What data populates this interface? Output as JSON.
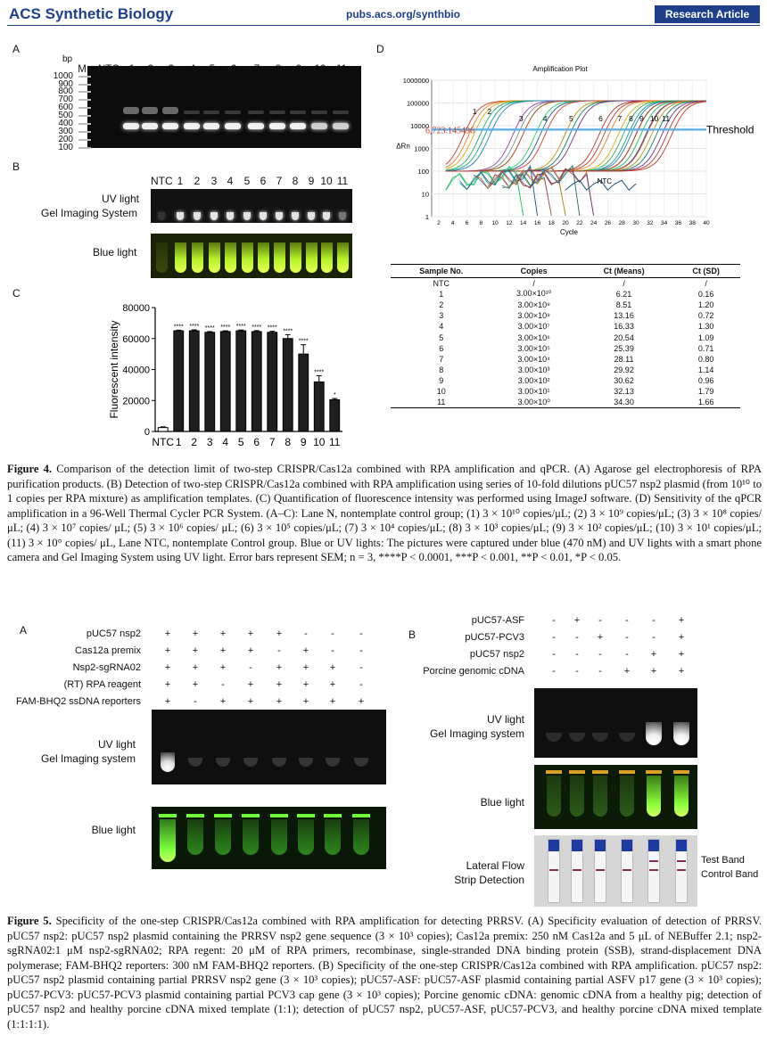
{
  "header": {
    "journal": "ACS Synthetic Biology",
    "url": "pubs.acs.org/synthbio",
    "article_type": "Research Article"
  },
  "fig4": {
    "panel_a": {
      "label": "A",
      "bp_label": "bp",
      "lane_labels": [
        "M",
        "NTC",
        "1",
        "2",
        "3",
        "4",
        "5",
        "6",
        "7",
        "8",
        "9",
        "10",
        "11"
      ],
      "bp_ticks": [
        "1000",
        "900",
        "800",
        "700",
        "600",
        "500",
        "400",
        "300",
        "200",
        "100"
      ]
    },
    "panel_b": {
      "label": "B",
      "lane_labels": [
        "NTC",
        "1",
        "2",
        "3",
        "4",
        "5",
        "6",
        "7",
        "8",
        "9",
        "10",
        "11"
      ],
      "uv_label_line1": "UV light",
      "uv_label_line2": "Gel Imaging System",
      "blue_label": "Blue light"
    },
    "panel_c": {
      "label": "C",
      "chart_data": {
        "type": "bar",
        "categories": [
          "NTC",
          "1",
          "2",
          "3",
          "4",
          "5",
          "6",
          "7",
          "8",
          "9",
          "10",
          "11"
        ],
        "values": [
          2500,
          65000,
          65000,
          64000,
          64500,
          65000,
          64500,
          64000,
          60000,
          50000,
          32000,
          20500
        ],
        "errors": [
          500,
          400,
          600,
          500,
          500,
          500,
          600,
          700,
          2500,
          6000,
          4000,
          800
        ],
        "significance": [
          "",
          "****",
          "****",
          "****",
          "****",
          "****",
          "****",
          "****",
          "****",
          "****",
          "****",
          "*"
        ],
        "ylabel": "Fluorescent intensity",
        "yticks": [
          "0",
          "20000",
          "40000",
          "60000",
          "80000"
        ],
        "ylim": [
          0,
          80000
        ]
      }
    },
    "panel_d": {
      "label": "D",
      "chart_data": {
        "type": "line",
        "title": "Amplification Plot",
        "xlabel": "Cycle",
        "ylabel": "ΔRn",
        "xticks": [
          "2",
          "4",
          "6",
          "8",
          "10",
          "12",
          "14",
          "16",
          "18",
          "20",
          "22",
          "24",
          "26",
          "28",
          "30",
          "32",
          "34",
          "36",
          "38",
          "40"
        ],
        "yticks": [
          "1000000",
          "100000",
          "10000",
          "1000",
          "100",
          "10",
          "1"
        ],
        "threshold_label": "Threshold",
        "threshold_value": "6,723.145496",
        "curve_labels": [
          "1",
          "2",
          "3",
          "4",
          "5",
          "6",
          "7",
          "8",
          "9",
          "10",
          "11"
        ],
        "ntc_label": "NTC"
      },
      "table": {
        "headers": [
          "Sample No.",
          "Copies",
          "Ct (Means)",
          "Ct (SD)"
        ],
        "rows": [
          [
            "NTC",
            "/",
            "/",
            "/"
          ],
          [
            "1",
            "3.00×10¹⁰",
            "6.21",
            "0.16"
          ],
          [
            "2",
            "3.00×10⁹",
            "8.51",
            "1.20"
          ],
          [
            "3",
            "3.00×10⁸",
            "13.16",
            "0.72"
          ],
          [
            "4",
            "3.00×10⁷",
            "16.33",
            "1.30"
          ],
          [
            "5",
            "3.00×10⁶",
            "20.54",
            "1.09"
          ],
          [
            "6",
            "3.00×10⁵",
            "25.39",
            "0.71"
          ],
          [
            "7",
            "3.00×10⁴",
            "28.11",
            "0.80"
          ],
          [
            "8",
            "3.00×10³",
            "29.92",
            "1.14"
          ],
          [
            "9",
            "3.00×10²",
            "30.62",
            "0.96"
          ],
          [
            "10",
            "3.00×10¹",
            "32.13",
            "1.79"
          ],
          [
            "11",
            "3.00×10⁰",
            "34.30",
            "1.66"
          ]
        ]
      }
    },
    "caption_lead": "Figure 4.",
    "caption": "Comparison of the detection limit of two-step CRISPR/Cas12a combined with RPA amplification and qPCR. (A) Agarose gel electrophoresis of RPA purification products. (B) Detection of two-step CRISPR/Cas12a combined with RPA amplification using series of 10-fold dilutions pUC57 nsp2 plasmid (from 10¹⁰ to 1 copies per RPA mixture) as amplification templates. (C) Quantification of fluorescence intensity was performed using ImageJ software. (D) Sensitivity of the qPCR amplification in a 96-Well Thermal Cycler PCR System. (A–C): Lane N, nontemplate control group; (1) 3 × 10¹⁰ copies/μL; (2) 3 × 10⁹ copies/μL; (3) 3 × 10⁸ copies/μL; (4) 3 × 10⁷ copies/ μL; (5) 3 × 10⁶ copies/ μL; (6) 3 × 10⁵ copies/μL; (7) 3 × 10⁴ copies/μL; (8) 3 × 10³ copies/μL; (9) 3 × 10² copies/μL; (10) 3 × 10¹ copies/μL; (11) 3 × 10° copies/ μL, Lane NTC, nontemplate Control group. Blue or UV lights: The pictures were captured under blue (470 nM) and UV lights with a smart phone camera and Gel Imaging System using UV light. Error bars represent SEM; n = 3, ****P < 0.0001, ***P < 0.001, **P < 0.01, *P < 0.05."
  },
  "fig5": {
    "panel_a": {
      "label": "A",
      "rows": [
        {
          "label": "pUC57 nsp2",
          "values": [
            "+",
            "+",
            "+",
            "+",
            "+",
            "-",
            "-",
            "-"
          ]
        },
        {
          "label": "Cas12a premix",
          "values": [
            "+",
            "+",
            "+",
            "+",
            "-",
            "+",
            "-",
            "-"
          ]
        },
        {
          "label": "Nsp2-sgRNA02",
          "values": [
            "+",
            "+",
            "+",
            "-",
            "+",
            "+",
            "+",
            "-"
          ]
        },
        {
          "label": "(RT) RPA reagent",
          "values": [
            "+",
            "+",
            "-",
            "+",
            "+",
            "+",
            "+",
            "-"
          ]
        },
        {
          "label": "FAM-BHQ2 ssDNA reporters",
          "values": [
            "+",
            "-",
            "+",
            "+",
            "+",
            "+",
            "+",
            "+"
          ]
        }
      ],
      "uv_label_line1": "UV light",
      "uv_label_line2": "Gel Imaging system",
      "blue_label": "Blue light"
    },
    "panel_b": {
      "label": "B",
      "rows": [
        {
          "label": "pUC57-ASF",
          "values": [
            "-",
            "+",
            "-",
            "-",
            "-",
            "+"
          ]
        },
        {
          "label": "pUC57-PCV3",
          "values": [
            "-",
            "-",
            "+",
            "-",
            "-",
            "+"
          ]
        },
        {
          "label": "pUC57 nsp2",
          "values": [
            "-",
            "-",
            "-",
            "-",
            "+",
            "+"
          ]
        },
        {
          "label": "Porcine genomic cDNA",
          "values": [
            "-",
            "-",
            "-",
            "+",
            "+",
            "+"
          ]
        }
      ],
      "uv_label_line1": "UV light",
      "uv_label_line2": "Gel Imaging system",
      "blue_label": "Blue light",
      "lfs_line1": "Lateral Flow",
      "lfs_line2": "Strip Detection",
      "test_band": "Test Band",
      "control_band": "Control Band"
    },
    "caption_lead": "Figure 5.",
    "caption": "Specificity of the one-step CRISPR/Cas12a combined with RPA amplification for detecting PRRSV. (A) Specificity evaluation of detection of PRRSV. pUC57 nsp2: pUC57 nsp2 plasmid containing the PRRSV nsp2 gene sequence (3 × 10³ copies); Cas12a premix: 250 nM Cas12a and 5 μL of NEBuffer 2.1; nsp2-sgRNA02:1 μM nsp2-sgRNA02; RPA regent: 20 μM of RPA primers, recombinase, single-stranded DNA binding protein (SSB), strand-displacement DNA polymerase; FAM-BHQ2 reporters: 300 nM FAM-BHQ2 reporters. (B) Specificity of the one-step CRISPR/Cas12a combined with RPA amplification. pUC57 nsp2: pUC57 nsp2 plasmid containing partial PRRSV nsp2 gene (3 × 10³ copies); pUC57-ASF: pUC57-ASF plasmid containing partial ASFV p17 gene (3 × 10³ copies); pUC57-PCV3: pUC57-PCV3 plasmid containing partial PCV3 cap gene (3 × 10³ copies); Porcine genomic cDNA: genomic cDNA from a healthy pig; detection of pUC57 nsp2 and healthy porcine cDNA mixed template (1:1); detection of pUC57 nsp2, pUC57-ASF, pUC57-PCV3, and healthy porcine cDNA mixed template (1:1:1:1)."
  }
}
